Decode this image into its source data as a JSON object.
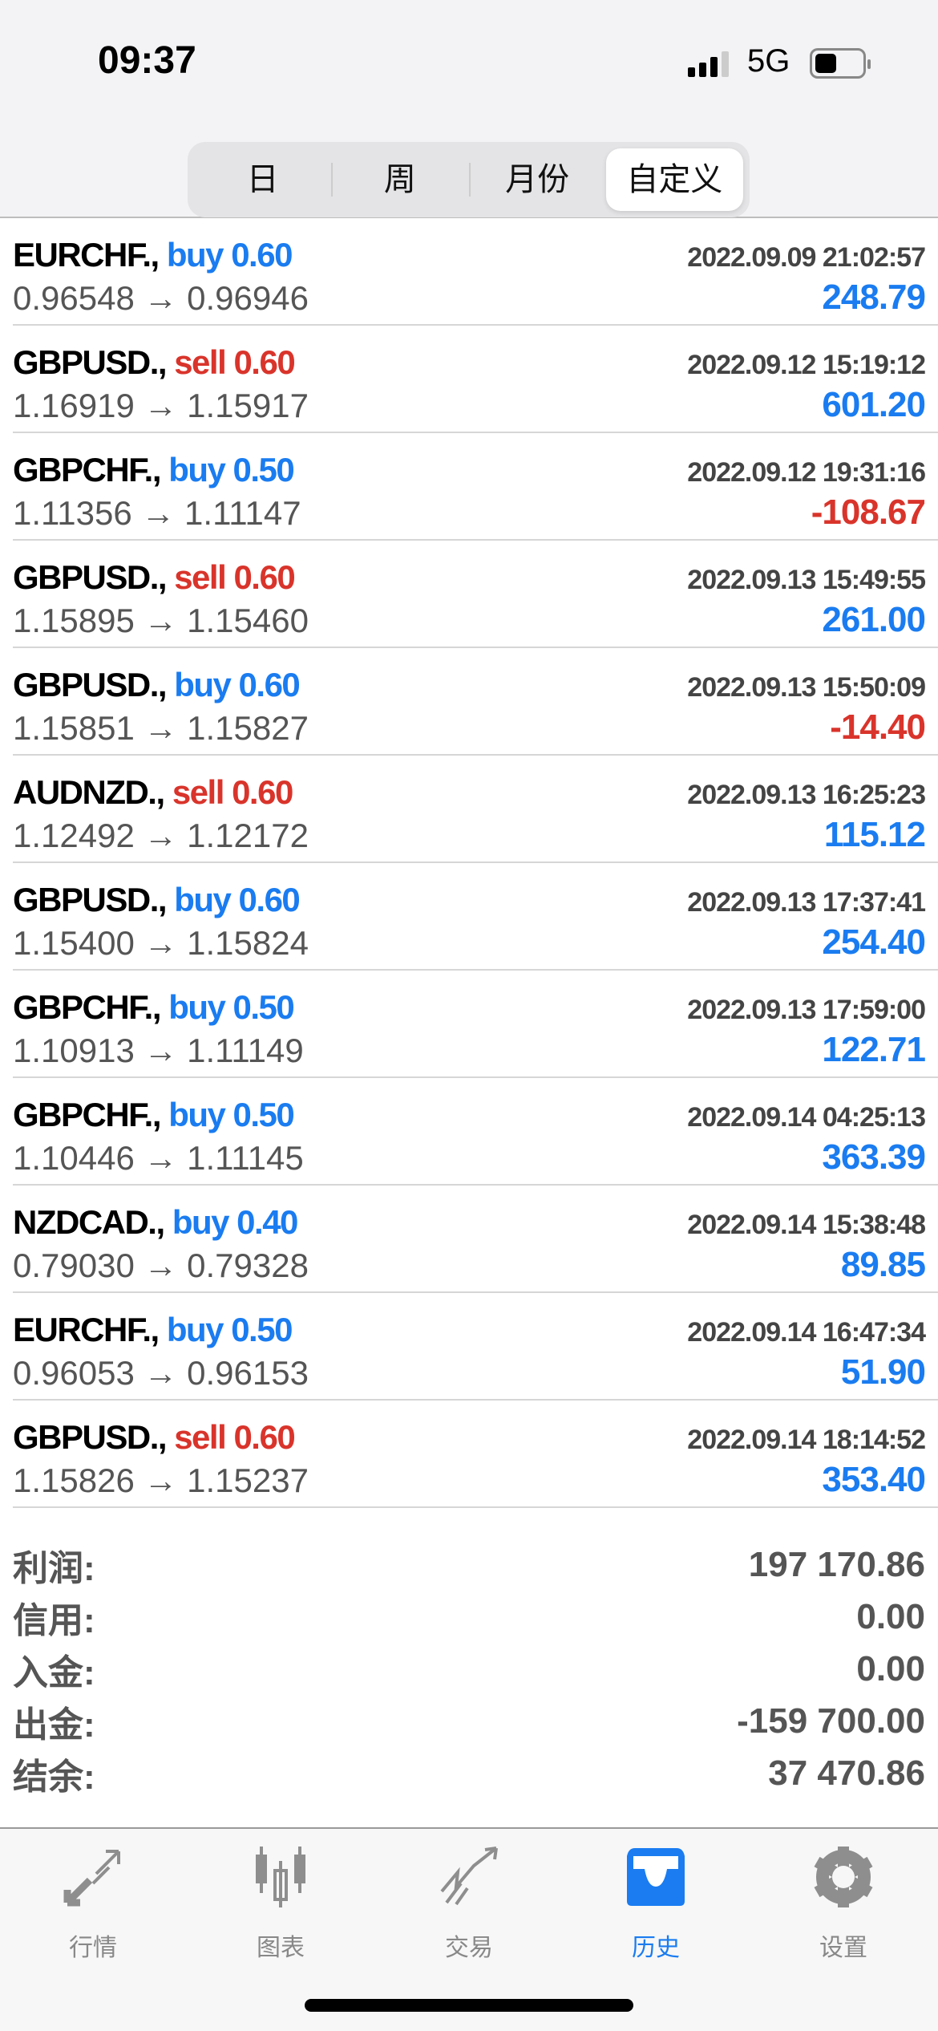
{
  "status_bar": {
    "time": "09:37",
    "network": "5G"
  },
  "period_tabs": [
    {
      "label": "日"
    },
    {
      "label": "周"
    },
    {
      "label": "月份"
    },
    {
      "label": "自定义",
      "active": true
    }
  ],
  "colors": {
    "buy": "#1a7cf0",
    "sell": "#d9342b",
    "profit_positive": "#1a7cf0",
    "profit_negative": "#d9342b"
  },
  "deals": [
    {
      "symbol": "EURCHF.,",
      "type": "buy",
      "volume": "0.60",
      "datetime": "2022.09.09 21:02:57",
      "prices": "0.96548 → 0.96946",
      "profit": "248.79"
    },
    {
      "symbol": "GBPUSD.,",
      "type": "sell",
      "volume": "0.60",
      "datetime": "2022.09.12 15:19:12",
      "prices": "1.16919 → 1.15917",
      "profit": "601.20"
    },
    {
      "symbol": "GBPCHF.,",
      "type": "buy",
      "volume": "0.50",
      "datetime": "2022.09.12 19:31:16",
      "prices": "1.11356 → 1.11147",
      "profit": "-108.67"
    },
    {
      "symbol": "GBPUSD.,",
      "type": "sell",
      "volume": "0.60",
      "datetime": "2022.09.13 15:49:55",
      "prices": "1.15895 → 1.15460",
      "profit": "261.00"
    },
    {
      "symbol": "GBPUSD.,",
      "type": "buy",
      "volume": "0.60",
      "datetime": "2022.09.13 15:50:09",
      "prices": "1.15851 → 1.15827",
      "profit": "-14.40"
    },
    {
      "symbol": "AUDNZD.,",
      "type": "sell",
      "volume": "0.60",
      "datetime": "2022.09.13 16:25:23",
      "prices": "1.12492 → 1.12172",
      "profit": "115.12"
    },
    {
      "symbol": "GBPUSD.,",
      "type": "buy",
      "volume": "0.60",
      "datetime": "2022.09.13 17:37:41",
      "prices": "1.15400 → 1.15824",
      "profit": "254.40"
    },
    {
      "symbol": "GBPCHF.,",
      "type": "buy",
      "volume": "0.50",
      "datetime": "2022.09.13 17:59:00",
      "prices": "1.10913 → 1.11149",
      "profit": "122.71"
    },
    {
      "symbol": "GBPCHF.,",
      "type": "buy",
      "volume": "0.50",
      "datetime": "2022.09.14 04:25:13",
      "prices": "1.10446 → 1.11145",
      "profit": "363.39"
    },
    {
      "symbol": "NZDCAD.,",
      "type": "buy",
      "volume": "0.40",
      "datetime": "2022.09.14 15:38:48",
      "prices": "0.79030 → 0.79328",
      "profit": "89.85"
    },
    {
      "symbol": "EURCHF.,",
      "type": "buy",
      "volume": "0.50",
      "datetime": "2022.09.14 16:47:34",
      "prices": "0.96053 → 0.96153",
      "profit": "51.90"
    },
    {
      "symbol": "GBPUSD.,",
      "type": "sell",
      "volume": "0.60",
      "datetime": "2022.09.14 18:14:52",
      "prices": "1.15826 → 1.15237",
      "profit": "353.40"
    }
  ],
  "summary": [
    {
      "label": "利润:",
      "value": "197 170.86"
    },
    {
      "label": "信用:",
      "value": "0.00"
    },
    {
      "label": "入金:",
      "value": "0.00"
    },
    {
      "label": "出金:",
      "value": "-159 700.00"
    },
    {
      "label": "结余:",
      "value": "37 470.86"
    }
  ],
  "tab_bar": [
    {
      "label": "行情",
      "icon": "quotes-arrows-icon"
    },
    {
      "label": "图表",
      "icon": "candlestick-chart-icon"
    },
    {
      "label": "交易",
      "icon": "trade-chart-icon"
    },
    {
      "label": "历史",
      "icon": "history-inbox-icon",
      "active": true
    },
    {
      "label": "设置",
      "icon": "gear-icon"
    }
  ]
}
